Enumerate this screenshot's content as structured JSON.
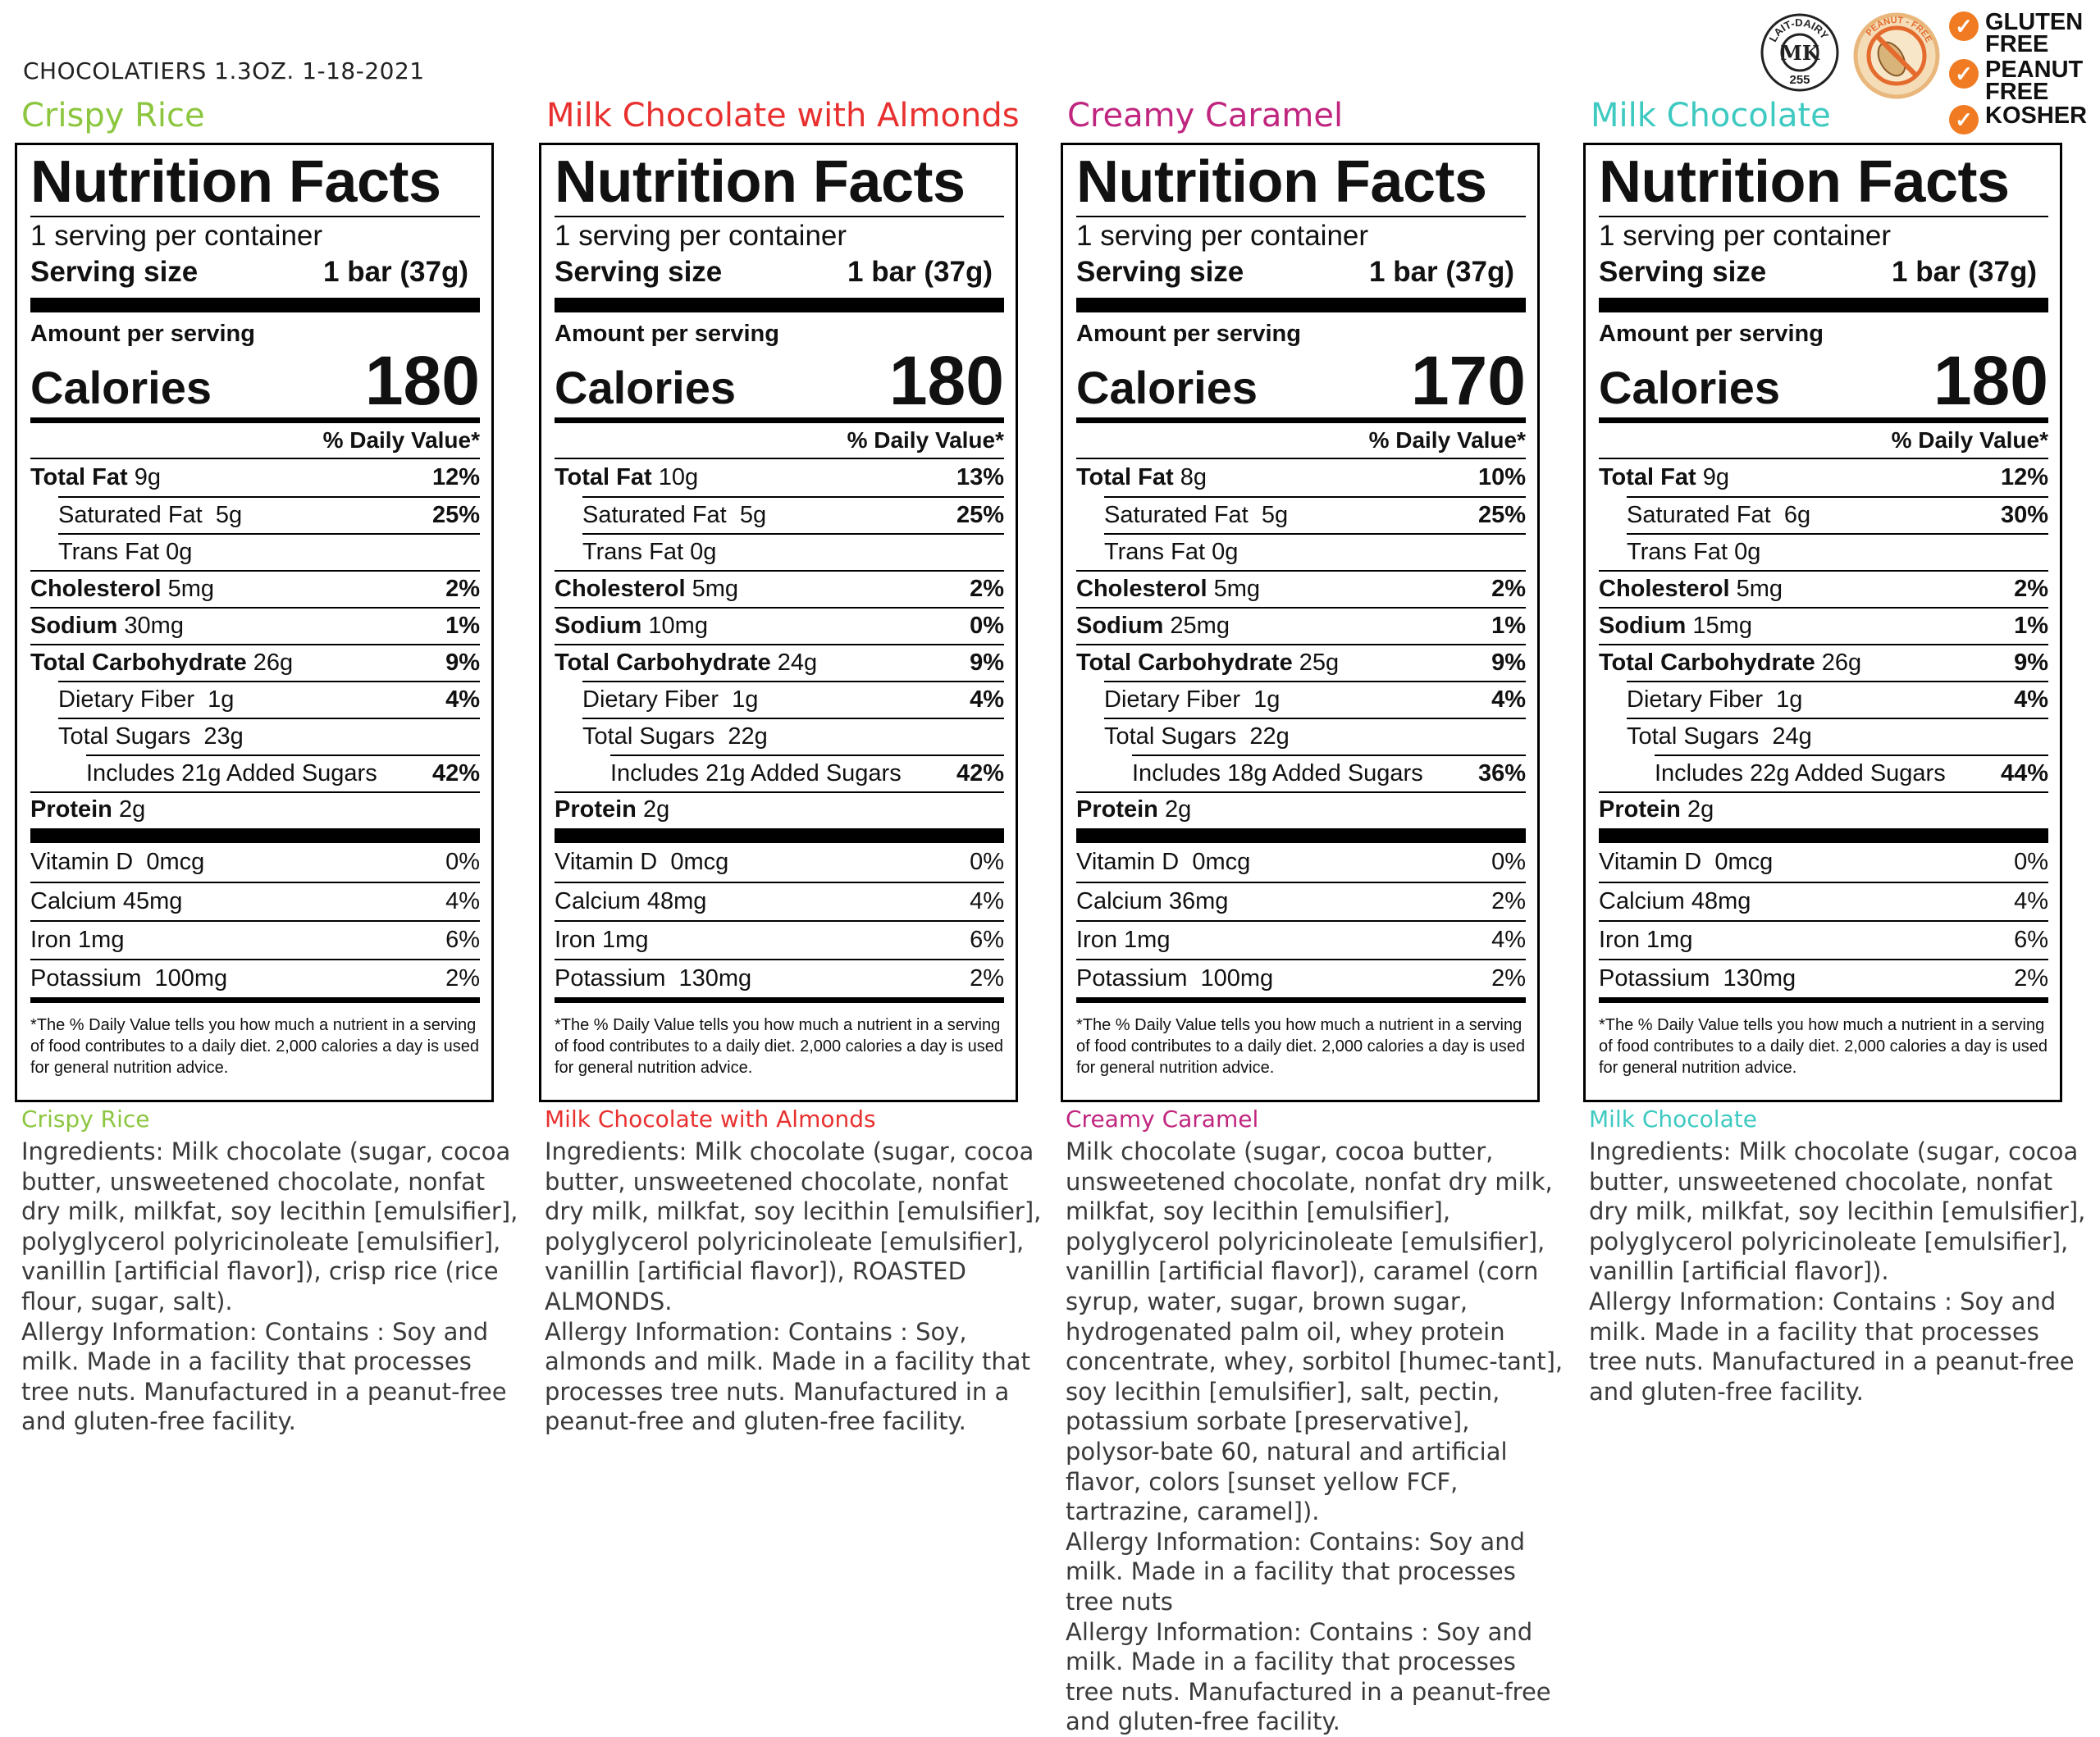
{
  "header": "CHOCOLATIERS 1.3OZ. 1-18-2021",
  "badges": {
    "kosher_seal_text": "LAIT-DAIRY",
    "kosher_seal_letters": "MK",
    "kosher_seal_number": "255",
    "peanut_seal_text": "PEANUT - FREE",
    "checks": [
      "GLUTEN FREE",
      "PEANUT FREE",
      "KOSHER"
    ],
    "check_color": "#f07b22"
  },
  "labels": {
    "nutrition_facts": "Nutrition Facts",
    "servings_per_container": "1 serving per container",
    "serving_size": "Serving size",
    "serving_size_value": "1 bar (37g)",
    "amount_per_serving": "Amount per serving",
    "calories": "Calories",
    "daily_value": "% Daily Value*",
    "total_fat": "Total Fat",
    "saturated_fat": "Saturated Fat",
    "trans_fat": "Trans Fat",
    "cholesterol": "Cholesterol",
    "sodium": "Sodium",
    "total_carbohydrate": "Total Carbohydrate",
    "dietary_fiber": "Dietary Fiber",
    "total_sugars": "Total Sugars",
    "protein": "Protein",
    "vitamin_d": "Vitamin D",
    "calcium": "Calcium",
    "iron": "Iron",
    "potassium": "Potassium",
    "footnote": "*The % Daily Value tells you how much a nutrient in a serving of food contributes to a daily diet. 2,000 calories a day is used for general nutrition advice."
  },
  "products": [
    {
      "name": "Crispy Rice",
      "color": "#8cc63f",
      "calories": "180",
      "total_fat": "9g",
      "total_fat_dv": "12%",
      "saturated_fat": "5g",
      "saturated_fat_dv": "25%",
      "trans_fat": "0g",
      "cholesterol": "5mg",
      "cholesterol_dv": "2%",
      "sodium": "30mg",
      "sodium_dv": "1%",
      "total_carbohydrate": "26g",
      "total_carbohydrate_dv": "9%",
      "dietary_fiber": "1g",
      "dietary_fiber_dv": "4%",
      "total_sugars": "23g",
      "added_sugars": "Includes 21g Added Sugars",
      "added_sugars_dv": "42%",
      "protein": "2g",
      "vitamin_d": "0mcg",
      "vitamin_d_dv": "0%",
      "calcium": "45mg",
      "calcium_dv": "4%",
      "iron": "1mg",
      "iron_dv": "6%",
      "potassium": "100mg",
      "potassium_dv": "2%",
      "ingredients": [
        "Ingredients: Milk chocolate (sugar, cocoa butter, unsweetened chocolate, nonfat dry milk, milkfat, soy lecithin [emulsifier], polyglycerol polyricinoleate [emulsifier], vanillin [artificial flavor]), crisp rice (rice flour, sugar, salt).",
        "Allergy Information: Contains : Soy and milk. Made in a facility that processes tree nuts. Manufactured in a peanut-free and gluten-free facility."
      ]
    },
    {
      "name": "Milk Chocolate with Almonds",
      "color": "#e8312f",
      "calories": "180",
      "total_fat": "10g",
      "total_fat_dv": "13%",
      "saturated_fat": "5g",
      "saturated_fat_dv": "25%",
      "trans_fat": "0g",
      "cholesterol": "5mg",
      "cholesterol_dv": "2%",
      "sodium": "10mg",
      "sodium_dv": "0%",
      "total_carbohydrate": "24g",
      "total_carbohydrate_dv": "9%",
      "dietary_fiber": "1g",
      "dietary_fiber_dv": "4%",
      "total_sugars": "22g",
      "added_sugars": "Includes 21g Added Sugars",
      "added_sugars_dv": "42%",
      "protein": "2g",
      "vitamin_d": "0mcg",
      "vitamin_d_dv": "0%",
      "calcium": "48mg",
      "calcium_dv": "4%",
      "iron": "1mg",
      "iron_dv": "6%",
      "potassium": "130mg",
      "potassium_dv": "2%",
      "ingredients": [
        "Ingredients: Milk chocolate (sugar, cocoa butter, unsweetened chocolate, nonfat dry milk, milkfat, soy lecithin [emulsifier], polyglycerol polyricinoleate [emulsifier], vanillin [artificial flavor]), ROASTED ALMONDS.",
        "Allergy Information: Contains : Soy, almonds and milk. Made in a facility that processes tree nuts. Manufactured in a peanut-free and gluten-free facility."
      ]
    },
    {
      "name": "Creamy Caramel",
      "color": "#c0267f",
      "calories": "170",
      "total_fat": "8g",
      "total_fat_dv": "10%",
      "saturated_fat": "5g",
      "saturated_fat_dv": "25%",
      "trans_fat": "0g",
      "cholesterol": "5mg",
      "cholesterol_dv": "2%",
      "sodium": "25mg",
      "sodium_dv": "1%",
      "total_carbohydrate": "25g",
      "total_carbohydrate_dv": "9%",
      "dietary_fiber": "1g",
      "dietary_fiber_dv": "4%",
      "total_sugars": "22g",
      "added_sugars": "Includes 18g Added Sugars",
      "added_sugars_dv": "36%",
      "protein": "2g",
      "vitamin_d": "0mcg",
      "vitamin_d_dv": "0%",
      "calcium": "36mg",
      "calcium_dv": "2%",
      "iron": "1mg",
      "iron_dv": "4%",
      "potassium": "100mg",
      "potassium_dv": "2%",
      "ingredients": [
        "Milk chocolate (sugar, cocoa butter, unsweetened chocolate, nonfat dry milk, milkfat, soy lecithin [emulsifier], polyglycerol polyricinoleate [emulsifier], vanillin [artificial flavor]), caramel (corn syrup, water, sugar, brown sugar, hydrogenated palm oil, whey protein concentrate, whey, sorbitol [humec-tant], soy lecithin [emulsifier], salt, pectin, potassium sorbate [preservative], polysor-bate 60, natural and artificial flavor, colors [sunset yellow FCF, tartrazine, caramel]).",
        "Allergy Information: Contains: Soy and milk. Made in a facility that processes tree nuts",
        "Allergy Information: Contains : Soy and milk. Made in a facility that processes tree nuts. Manufactured in a peanut-free and gluten-free facility."
      ]
    },
    {
      "name": "Milk Chocolate",
      "color": "#3ec9c1",
      "calories": "180",
      "total_fat": "9g",
      "total_fat_dv": "12%",
      "saturated_fat": "6g",
      "saturated_fat_dv": "30%",
      "trans_fat": "0g",
      "cholesterol": "5mg",
      "cholesterol_dv": "2%",
      "sodium": "15mg",
      "sodium_dv": "1%",
      "total_carbohydrate": "26g",
      "total_carbohydrate_dv": "9%",
      "dietary_fiber": "1g",
      "dietary_fiber_dv": "4%",
      "total_sugars": "24g",
      "added_sugars": "Includes 22g Added Sugars",
      "added_sugars_dv": "44%",
      "protein": "2g",
      "vitamin_d": "0mcg",
      "vitamin_d_dv": "0%",
      "calcium": "48mg",
      "calcium_dv": "4%",
      "iron": "1mg",
      "iron_dv": "6%",
      "potassium": "130mg",
      "potassium_dv": "2%",
      "ingredients": [
        "Ingredients: Milk chocolate (sugar, cocoa butter, unsweetened chocolate, nonfat dry milk, milkfat, soy lecithin [emulsifier], polyglycerol polyricinoleate [emulsifier], vanillin [artificial flavor]).",
        "Allergy Information: Contains : Soy and milk. Made in a facility that processes tree nuts. Manufactured in a peanut-free and gluten-free facility."
      ]
    }
  ]
}
